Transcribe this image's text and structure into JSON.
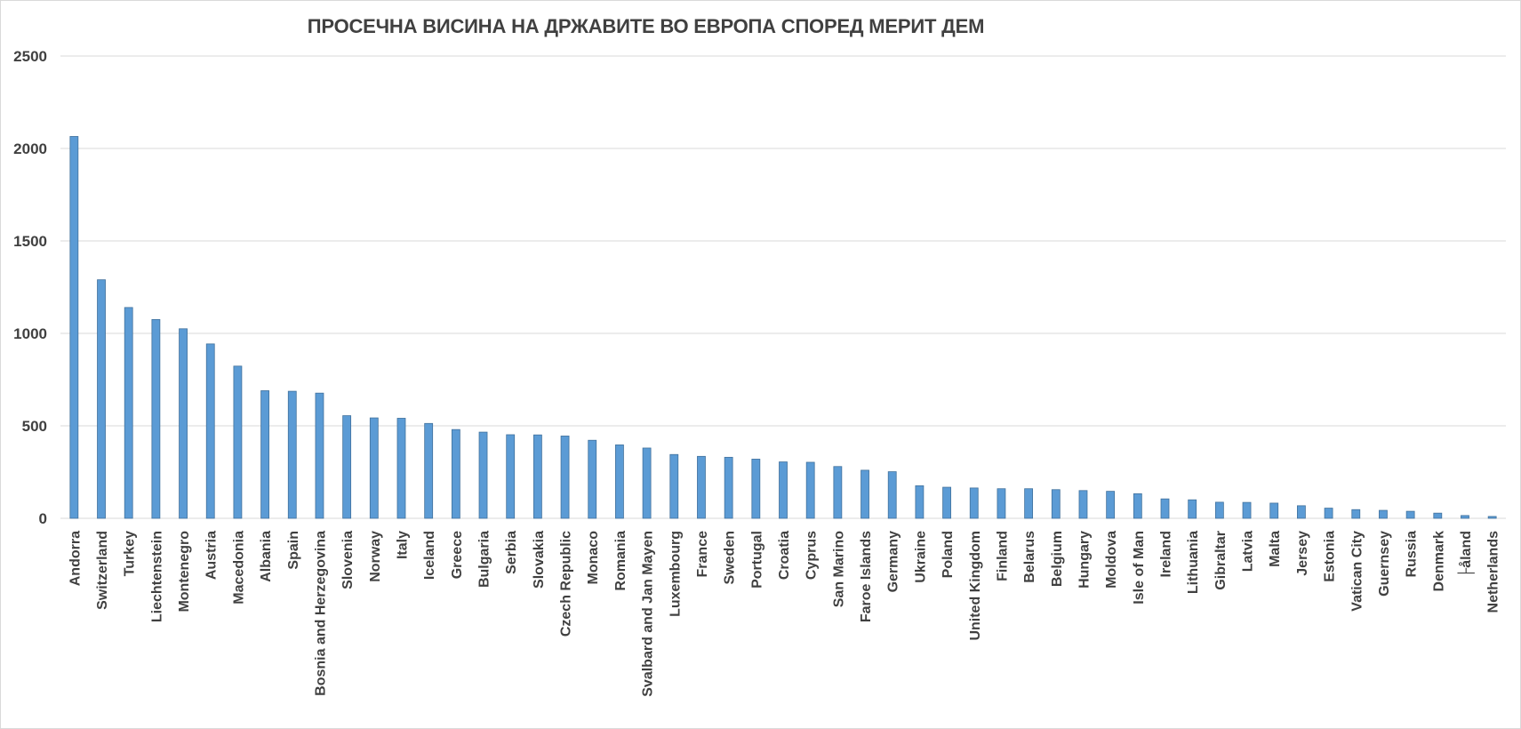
{
  "chart_data": {
    "type": "bar",
    "title": "ПРОСЕЧНА ВИСИНА НА ДРЖАВИТЕ ВО ЕВРОПА СПОРЕД МЕРИТ ДЕМ",
    "xlabel": "",
    "ylabel": "",
    "ylim": [
      0,
      2500
    ],
    "yticks": [
      0,
      500,
      1000,
      1500,
      2000,
      2500
    ],
    "grid": true,
    "legend": "none",
    "bar_color": "#5b9bd5",
    "bar_edge_color": "#41719c",
    "categories": [
      "Andorra",
      "Switzerland",
      "Turkey",
      "Liechtenstein",
      "Montenegro",
      "Austria",
      "Macedonia",
      "Albania",
      "Spain",
      "Bosnia and Herzegovina",
      "Slovenia",
      "Norway",
      "Italy",
      "Iceland",
      "Greece",
      "Bulgaria",
      "Serbia",
      "Slovakia",
      "Czech Republic",
      "Monaco",
      "Romania",
      "Svalbard and Jan Mayen",
      "Luxembourg",
      "France",
      "Sweden",
      "Portugal",
      "Croatia",
      "Cyprus",
      "San Marino",
      "Faroe Islands",
      "Germany",
      "Ukraine",
      "Poland",
      "United Kingdom",
      "Finland",
      "Belarus",
      "Belgium",
      "Hungary",
      "Moldova",
      "Isle of Man",
      "Ireland",
      "Lithuania",
      "Gibraltar",
      "Latvia",
      "Malta",
      "Jersey",
      "Estonia",
      "Vatican City",
      "Guernsey",
      "Russia",
      "Denmark",
      "├åland",
      "Netherlands"
    ],
    "values": [
      2065,
      1290,
      1140,
      1075,
      1025,
      943,
      823,
      690,
      687,
      677,
      555,
      543,
      541,
      513,
      480,
      466,
      452,
      451,
      445,
      422,
      397,
      380,
      345,
      335,
      330,
      320,
      305,
      303,
      280,
      260,
      252,
      176,
      168,
      164,
      160,
      160,
      155,
      150,
      146,
      133,
      105,
      100,
      87,
      86,
      82,
      68,
      55,
      47,
      43,
      38,
      28,
      15,
      10
    ]
  }
}
